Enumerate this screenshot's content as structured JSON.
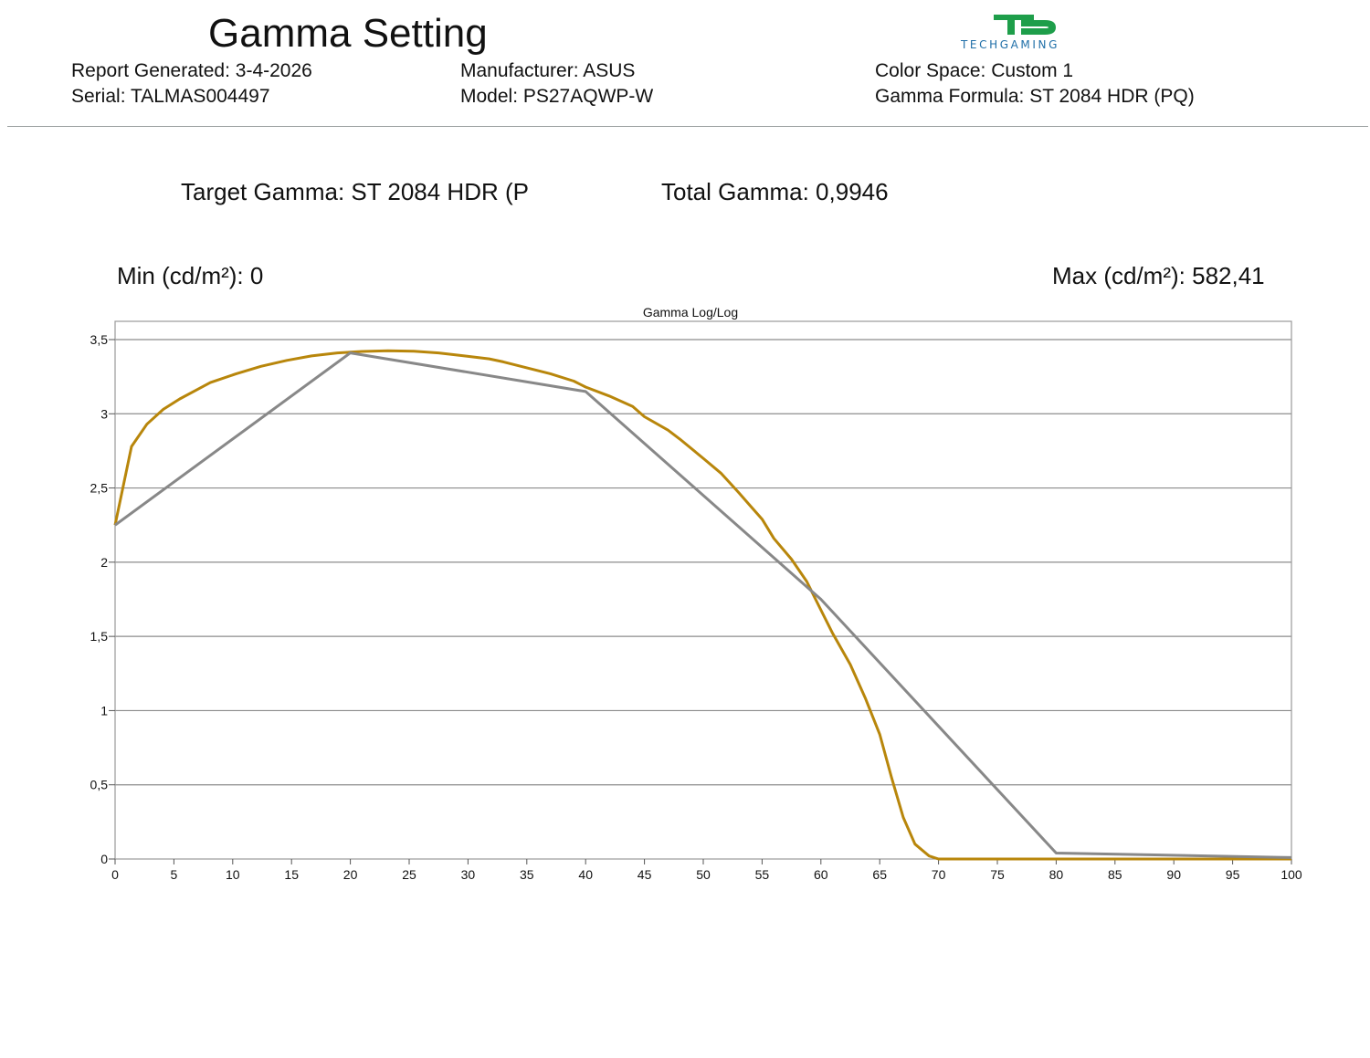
{
  "header": {
    "title": "Gamma Setting",
    "report_generated": "Report Generated: 3-4-2026",
    "serial": "Serial: TALMAS004497",
    "manufacturer": "Manufacturer: ASUS",
    "model": "Model: PS27AQWP-W",
    "color_space": "Color Space: Custom 1",
    "gamma_formula": "Gamma Formula: ST 2084 HDR (PQ)"
  },
  "logo": {
    "text": "TECHGAMING",
    "icon": "techgaming-logo-icon",
    "color_green": "#1e9e4a",
    "color_blue": "#1f6fa8"
  },
  "summary": {
    "target_gamma": "Target Gamma: ST 2084 HDR (P",
    "total_gamma": "Total Gamma:  0,9946",
    "min": "Min (cd/m²): 0",
    "max": "Max (cd/m²): 582,41"
  },
  "chart_data": {
    "type": "line",
    "title": "Gamma Log/Log",
    "xlabel": "",
    "ylabel": "",
    "xlim": [
      0,
      100
    ],
    "ylim": [
      0,
      3.5
    ],
    "x_ticks": [
      "0",
      "5",
      "10",
      "15",
      "20",
      "25",
      "30",
      "35",
      "40",
      "45",
      "50",
      "55",
      "60",
      "65",
      "70",
      "75",
      "80",
      "85",
      "90",
      "95",
      "100"
    ],
    "x_tick_values": [
      0,
      5,
      10,
      15,
      20,
      25,
      30,
      35,
      40,
      45,
      50,
      55,
      60,
      65,
      70,
      75,
      80,
      85,
      90,
      95,
      100
    ],
    "y_ticks": [
      "0",
      "0,5",
      "1",
      "1,5",
      "2",
      "2,5",
      "3",
      "3,5"
    ],
    "y_tick_values": [
      0,
      0.5,
      1,
      1.5,
      2,
      2.5,
      3,
      3.5
    ],
    "grid": "horizontal",
    "series": [
      {
        "color": "#b8860b",
        "points": [
          [
            0,
            2.25
          ],
          [
            1.4,
            2.78
          ],
          [
            2.7,
            2.93
          ],
          [
            4.1,
            3.03
          ],
          [
            5.5,
            3.1
          ],
          [
            6.9,
            3.16
          ],
          [
            8.1,
            3.21
          ],
          [
            10.3,
            3.27
          ],
          [
            12.4,
            3.32
          ],
          [
            14.6,
            3.36
          ],
          [
            16.7,
            3.39
          ],
          [
            18.9,
            3.41
          ],
          [
            21,
            3.42
          ],
          [
            23.2,
            3.425
          ],
          [
            25.4,
            3.422
          ],
          [
            27.5,
            3.41
          ],
          [
            29.7,
            3.39
          ],
          [
            31.8,
            3.37
          ],
          [
            33,
            3.35
          ],
          [
            35,
            3.31
          ],
          [
            37,
            3.27
          ],
          [
            39,
            3.22
          ],
          [
            40,
            3.18
          ],
          [
            42,
            3.12
          ],
          [
            44,
            3.05
          ],
          [
            45,
            2.98
          ],
          [
            47,
            2.89
          ],
          [
            48,
            2.83
          ],
          [
            50,
            2.7
          ],
          [
            51.5,
            2.6
          ],
          [
            53,
            2.47
          ],
          [
            54,
            2.38
          ],
          [
            55,
            2.29
          ],
          [
            56,
            2.16
          ],
          [
            57.5,
            2.02
          ],
          [
            58.8,
            1.87
          ],
          [
            59.8,
            1.71
          ],
          [
            61,
            1.52
          ],
          [
            62.5,
            1.31
          ],
          [
            63.8,
            1.08
          ],
          [
            65,
            0.84
          ],
          [
            66,
            0.55
          ],
          [
            67,
            0.28
          ],
          [
            68,
            0.1
          ],
          [
            69.2,
            0.02
          ],
          [
            70,
            0
          ],
          [
            80,
            0
          ],
          [
            90,
            0
          ],
          [
            100,
            0
          ]
        ]
      },
      {
        "color": "#888888",
        "points": [
          [
            0,
            2.25
          ],
          [
            20,
            3.41
          ],
          [
            40,
            3.15
          ],
          [
            60,
            1.75
          ],
          [
            80,
            0.04
          ],
          [
            100,
            0.01
          ]
        ]
      }
    ]
  }
}
